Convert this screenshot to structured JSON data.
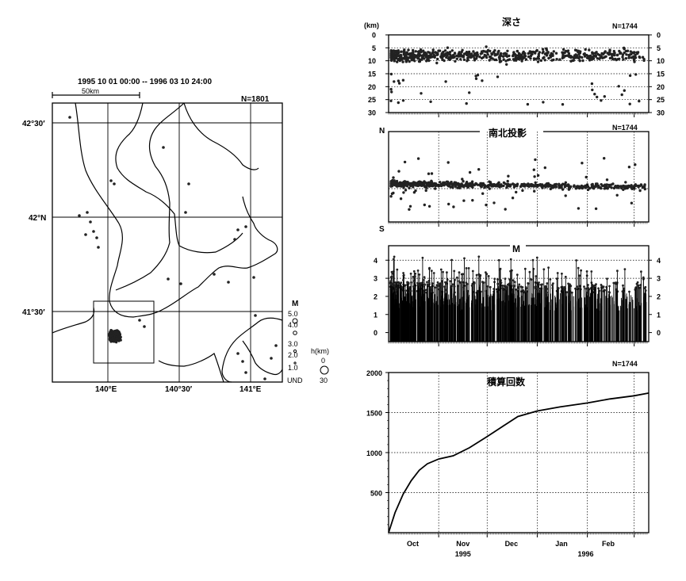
{
  "map": {
    "period": "1995 10 01 00:00 -- 1996 03 10 24:00",
    "scale_label": "50km",
    "count": "N=1801",
    "lat_labels": [
      "42°30′",
      "42°N",
      "41°30′"
    ],
    "lon_labels": [
      "140°E",
      "140°30′",
      "141°E"
    ],
    "mag_legend_title": "M",
    "mag_legend": [
      "5.0",
      "4.0",
      "3.0",
      "2.0",
      "1.0",
      "UND"
    ],
    "depth_legend_title": "h(km)",
    "depth_legend": [
      "0",
      "30"
    ]
  },
  "chart_data": [
    {
      "type": "scatter",
      "title": "深さ",
      "count": "N=1744",
      "ylabel": "(km)",
      "ylim": [
        30,
        0
      ],
      "y_ticks": [
        "0",
        "5",
        "10",
        "15",
        "20",
        "25",
        "30"
      ],
      "x_range": [
        "1995-10-01",
        "1996-03-10"
      ],
      "series": []
    },
    {
      "type": "scatter",
      "title": "南北投影",
      "count": "N=1744",
      "y_top_label": "N",
      "y_bottom_label": "S",
      "x_range": [
        "1995-10-01",
        "1996-03-10"
      ],
      "series": []
    },
    {
      "type": "bar",
      "title": "M",
      "ylim": [
        -0.5,
        4.8
      ],
      "y_ticks": [
        "0",
        "1",
        "2",
        "3",
        "4"
      ],
      "x_range": [
        "1995-10-01",
        "1996-03-10"
      ],
      "series": []
    },
    {
      "type": "line",
      "title": "積算回数",
      "count": "N=1744",
      "ylim": [
        0,
        2000
      ],
      "y_ticks": [
        "500",
        "1000",
        "1500",
        "2000"
      ],
      "x_month_labels": [
        "Oct",
        "Nov",
        "Dec",
        "Jan",
        "Feb"
      ],
      "x_year_labels": [
        "1995",
        "1996"
      ],
      "series": [
        {
          "x": [
            "1995-10-01",
            "1995-10-05",
            "1995-10-10",
            "1995-10-15",
            "1995-10-20",
            "1995-10-25",
            "1995-11-01",
            "1995-11-10",
            "1995-11-20",
            "1995-12-01",
            "1995-12-10",
            "1995-12-20",
            "1996-01-01",
            "1996-01-15",
            "1996-02-01",
            "1996-02-15",
            "1996-03-01",
            "1996-03-10"
          ],
          "y": [
            0,
            250,
            480,
            650,
            780,
            860,
            920,
            960,
            1060,
            1200,
            1320,
            1450,
            1520,
            1570,
            1620,
            1670,
            1710,
            1744
          ]
        }
      ]
    }
  ]
}
